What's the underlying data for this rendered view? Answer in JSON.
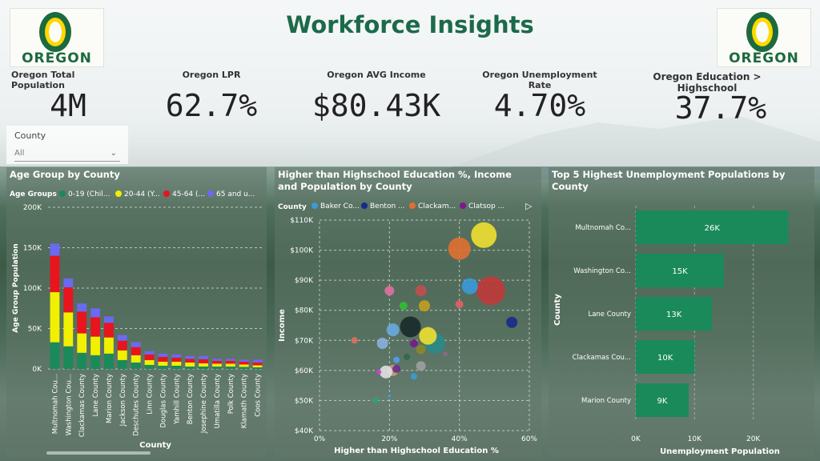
{
  "header": {
    "title": "Workforce Insights",
    "logo_text": "OREGON"
  },
  "kpis": [
    {
      "label": "Oregon Total Population",
      "value": "4M"
    },
    {
      "label": "Oregon LPR",
      "value": "62.7%"
    },
    {
      "label": "Oregon AVG Income",
      "value": "$80.43K"
    },
    {
      "label": "Oregon Unemployment Rate",
      "value": "4.70%"
    },
    {
      "label": "Oregon Education > Highschool",
      "value": "37.7%"
    }
  ],
  "slicer": {
    "label": "County",
    "value": "All"
  },
  "colors": {
    "brand_green": "#1c6a4a",
    "bar_green": "#1a8a5a",
    "age_green": "#1a8a5a",
    "age_yellow": "#f0f000",
    "age_red": "#e8141e",
    "age_blue": "#6a6af0"
  },
  "chart_data": [
    {
      "type": "bar",
      "title": "Age Group by County",
      "legend_title": "Age Groups",
      "legend": [
        "0-19 (Chil...",
        "20-44 (Y...",
        "45-64 (...",
        "65 and u..."
      ],
      "xlabel": "County",
      "ylabel": "Age Group Population",
      "yticks": [
        "0K",
        "50K",
        "100K",
        "150K",
        "200K"
      ],
      "ylim": [
        0,
        200000
      ],
      "categories": [
        "Multnomah Cou...",
        "Washington Cou...",
        "Clackamas County",
        "Lane County",
        "Marion County",
        "Jackson County",
        "Deschutes County",
        "Linn County",
        "Douglas County",
        "Yamhill County",
        "Benton County",
        "Josephine County",
        "Umatilla County",
        "Polk County",
        "Klamath County",
        "Coos County"
      ],
      "series": [
        {
          "name": "0-19 (Chil...",
          "values": [
            33000,
            28000,
            20000,
            17000,
            19000,
            11000,
            8000,
            5000,
            4000,
            4000,
            3000,
            3000,
            3000,
            3000,
            2500,
            2000
          ]
        },
        {
          "name": "20-44 (Y...",
          "values": [
            62000,
            42000,
            24000,
            23000,
            20000,
            12000,
            9000,
            6000,
            5000,
            5000,
            5000,
            4000,
            3500,
            3500,
            3000,
            2500
          ]
        },
        {
          "name": "45-64 (...",
          "values": [
            45000,
            31000,
            27000,
            24000,
            18000,
            12000,
            10000,
            7000,
            6000,
            5000,
            4500,
            5000,
            3500,
            3500,
            3500,
            3500
          ]
        },
        {
          "name": "65 and u...",
          "values": [
            15000,
            11000,
            10000,
            11000,
            8000,
            7000,
            6000,
            4000,
            4000,
            4000,
            3500,
            4000,
            2500,
            2500,
            2500,
            3500
          ]
        }
      ]
    },
    {
      "type": "scatter",
      "title": "Higher than Highschool Education %, Income and Population by County",
      "legend_title": "County",
      "legend": [
        "Baker Co...",
        "Benton ...",
        "Clackam...",
        "Clatsop ..."
      ],
      "legend_colors": [
        "#3a9ad8",
        "#1a2a8a",
        "#e07030",
        "#7a1a8a"
      ],
      "xlabel": "Higher than Highschool Education %",
      "ylabel": "Income",
      "xticks": [
        "0%",
        "20%",
        "40%",
        "60%"
      ],
      "yticks": [
        "$40K",
        "$50K",
        "$60K",
        "$70K",
        "$80K",
        "$90K",
        "$100K",
        "$110K"
      ],
      "xlim": [
        0,
        60
      ],
      "ylim": [
        40000,
        110000
      ],
      "points": [
        {
          "x": 47,
          "y": 105000,
          "r": 16,
          "color": "#f0e030"
        },
        {
          "x": 40,
          "y": 100500,
          "r": 14,
          "color": "#e07030"
        },
        {
          "x": 49,
          "y": 86500,
          "r": 18,
          "color": "#c03a3a"
        },
        {
          "x": 43,
          "y": 88000,
          "r": 10,
          "color": "#3a9ad8"
        },
        {
          "x": 55,
          "y": 76000,
          "r": 7,
          "color": "#1a2a8a"
        },
        {
          "x": 33,
          "y": 69000,
          "r": 13,
          "color": "#2a8a8a"
        },
        {
          "x": 31,
          "y": 71500,
          "r": 11,
          "color": "#f0e030"
        },
        {
          "x": 26,
          "y": 74500,
          "r": 13,
          "color": "#1a2a2a"
        },
        {
          "x": 30,
          "y": 81500,
          "r": 7,
          "color": "#c0a020"
        },
        {
          "x": 29,
          "y": 86500,
          "r": 7,
          "color": "#c05050"
        },
        {
          "x": 40,
          "y": 82000,
          "r": 5,
          "color": "#e06060"
        },
        {
          "x": 24,
          "y": 81500,
          "r": 5,
          "color": "#30c030"
        },
        {
          "x": 20,
          "y": 86500,
          "r": 6,
          "color": "#e070a0"
        },
        {
          "x": 21,
          "y": 73500,
          "r": 8,
          "color": "#6aaae0"
        },
        {
          "x": 18,
          "y": 69000,
          "r": 7,
          "color": "#8ab0e0"
        },
        {
          "x": 10,
          "y": 70000,
          "r": 4,
          "color": "#e07060"
        },
        {
          "x": 27,
          "y": 69000,
          "r": 5,
          "color": "#7a1a8a"
        },
        {
          "x": 25,
          "y": 64500,
          "r": 4,
          "color": "#2a6a4a"
        },
        {
          "x": 29,
          "y": 67000,
          "r": 6,
          "color": "#8a8a2a"
        },
        {
          "x": 29,
          "y": 61500,
          "r": 6,
          "color": "#a0a0a0"
        },
        {
          "x": 22,
          "y": 63500,
          "r": 4,
          "color": "#50a0f0"
        },
        {
          "x": 21,
          "y": 60000,
          "r": 7,
          "color": "#c0a080"
        },
        {
          "x": 19,
          "y": 59500,
          "r": 8,
          "color": "#e0e0e0"
        },
        {
          "x": 22,
          "y": 60500,
          "r": 5,
          "color": "#6a2a8a"
        },
        {
          "x": 17,
          "y": 59500,
          "r": 3,
          "color": "#d040d0"
        },
        {
          "x": 27,
          "y": 58000,
          "r": 4,
          "color": "#3a9ad8"
        },
        {
          "x": 16,
          "y": 50000,
          "r": 4,
          "color": "#30a070"
        },
        {
          "x": 20,
          "y": 51500,
          "r": 2,
          "color": "#3a9ad8"
        },
        {
          "x": 36,
          "y": 65500,
          "r": 3,
          "color": "#8a6a8a"
        }
      ]
    },
    {
      "type": "bar",
      "orientation": "horizontal",
      "title": "Top 5 Highest Unemployment Populations by County",
      "xlabel": "Unemployment Population",
      "ylabel": "County",
      "xticks": [
        "0K",
        "10K",
        "20K"
      ],
      "xlim": [
        0,
        30000
      ],
      "categories": [
        "Multnomah Co...",
        "Washington Co...",
        "Lane County",
        "Clackamas Cou...",
        "Marion County"
      ],
      "values": [
        26000,
        15000,
        13000,
        10000,
        9000
      ],
      "data_labels": [
        "26K",
        "15K",
        "13K",
        "10K",
        "9K"
      ]
    }
  ]
}
